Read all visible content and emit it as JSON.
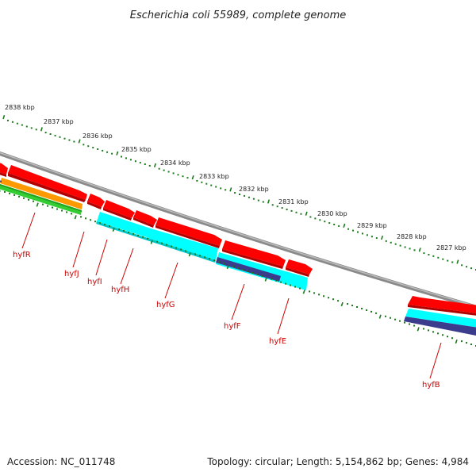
{
  "title": "Escherichia coli 55989, complete genome",
  "footer": {
    "accession": "Accession: NC_011748",
    "summary": "Topology: circular; Length: 5,154,862 bp; Genes: 4,984"
  },
  "ruler": {
    "unit": "kbp",
    "labels": [
      "2838 kbp",
      "2837 kbp",
      "2836 kbp",
      "2835 kbp",
      "2834 kbp",
      "2833 kbp",
      "2832 kbp",
      "2831 kbp",
      "2830 kbp",
      "2829 kbp",
      "2828 kbp",
      "2827 kbp"
    ]
  },
  "genes": [
    {
      "name": "hyfR"
    },
    {
      "name": "hyfJ"
    },
    {
      "name": "hyfI"
    },
    {
      "name": "hyfH"
    },
    {
      "name": "hyfG"
    },
    {
      "name": "hyfF"
    },
    {
      "name": "hyfE"
    },
    {
      "name": "hyfB"
    }
  ],
  "colors": {
    "backbone": "#8a8a8a",
    "cds": "#ff0000",
    "cds_dark": "#b00000",
    "feature_cyan": "#00ffff",
    "feature_orange": "#ff9900",
    "feature_green": "#33cc33",
    "feature_purple": "#3c3c8c",
    "tick": "#1a7a1a",
    "label": "#cc0000"
  }
}
